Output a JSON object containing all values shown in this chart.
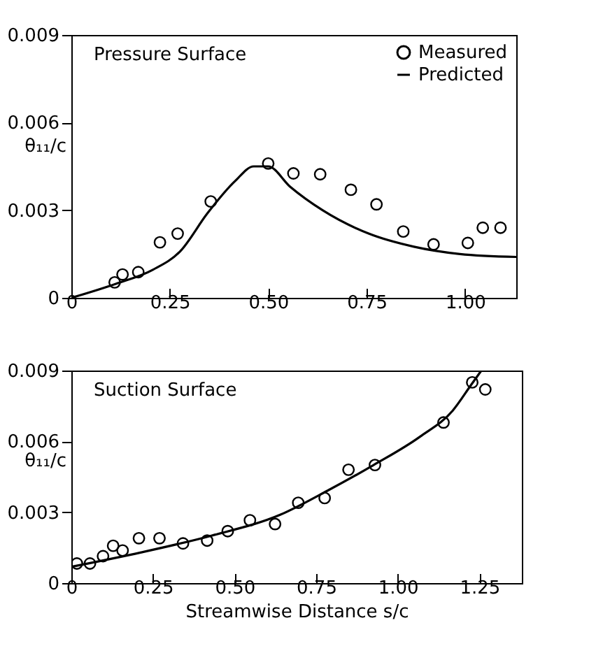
{
  "chart_data": [
    {
      "type": "line",
      "title": "Pressure Surface",
      "ylabel": "θ₁₁/c",
      "xlim": [
        0,
        1.13
      ],
      "ylim": [
        0,
        0.009
      ],
      "xticks": [
        {
          "value": 0,
          "label": "0"
        },
        {
          "value": 0.25,
          "label": "0.25"
        },
        {
          "value": 0.5,
          "label": "0.50"
        },
        {
          "value": 0.75,
          "label": "0.75"
        },
        {
          "value": 1,
          "label": "1.00"
        }
      ],
      "yticks": [
        0,
        0.003,
        0.006,
        0.009
      ],
      "grid": false,
      "legend": "top right",
      "series": [
        {
          "name": "Measured",
          "type": "scatter",
          "marker": "circle",
          "color": "#000000",
          "x": [
            0.11,
            0.13,
            0.17,
            0.225,
            0.27,
            0.354,
            0.5,
            0.564,
            0.632,
            0.71,
            0.775,
            0.843,
            0.92,
            1.007,
            1.045,
            1.09
          ],
          "values": [
            0.00053,
            0.0008,
            0.00088,
            0.0019,
            0.0022,
            0.0033,
            0.0046,
            0.00426,
            0.00423,
            0.0037,
            0.0032,
            0.00227,
            0.00183,
            0.00188,
            0.0024,
            0.0024
          ]
        },
        {
          "name": "Predicted",
          "type": "line",
          "color": "#000000",
          "x": [
            0,
            0.113,
            0.207,
            0.277,
            0.346,
            0.416,
            0.463,
            0.5,
            0.556,
            0.638,
            0.755,
            0.87,
            0.987,
            1.13
          ],
          "values": [
            0,
            0.00048,
            0.00096,
            0.0016,
            0.0029,
            0.004,
            0.0045,
            0.0045,
            0.0038,
            0.003,
            0.0022,
            0.00175,
            0.0015,
            0.0014
          ]
        }
      ]
    },
    {
      "type": "line",
      "title": "Suction Surface",
      "xlabel": "Streamwise Distance s/c",
      "ylabel": "θ₁₁/c",
      "xlim": [
        0,
        1.38
      ],
      "ylim": [
        0,
        0.009
      ],
      "xticks": [
        {
          "value": 0,
          "label": "0"
        },
        {
          "value": 0.25,
          "label": "0.25"
        },
        {
          "value": 0.5,
          "label": "0.50"
        },
        {
          "value": 0.75,
          "label": "0.75"
        },
        {
          "value": 1,
          "label": "1.00"
        },
        {
          "value": 1.25,
          "label": "1.25"
        }
      ],
      "yticks": [
        0,
        0.003,
        0.006,
        0.009
      ],
      "grid": false,
      "series": [
        {
          "type": "scatter",
          "marker": "circle",
          "color": "#000000",
          "x": [
            0.017,
            0.057,
            0.097,
            0.128,
            0.157,
            0.207,
            0.27,
            0.342,
            0.416,
            0.479,
            0.547,
            0.624,
            0.695,
            0.776,
            0.849,
            0.93,
            1.14,
            1.228,
            1.268
          ],
          "values": [
            0.00083,
            0.00083,
            0.00114,
            0.00158,
            0.00138,
            0.0019,
            0.0019,
            0.00168,
            0.0018,
            0.0022,
            0.00266,
            0.0025,
            0.0034,
            0.0036,
            0.0048,
            0.005,
            0.0068,
            0.0085,
            0.0082
          ]
        },
        {
          "type": "line",
          "color": "#000000",
          "x": [
            0,
            0.214,
            0.427,
            0.641,
            0.783,
            0.926,
            1.068,
            1.168,
            1.225,
            1.256
          ],
          "values": [
            0.00069,
            0.0013,
            0.002,
            0.0029,
            0.0039,
            0.005,
            0.0062,
            0.0073,
            0.0084,
            0.009
          ]
        }
      ]
    }
  ]
}
